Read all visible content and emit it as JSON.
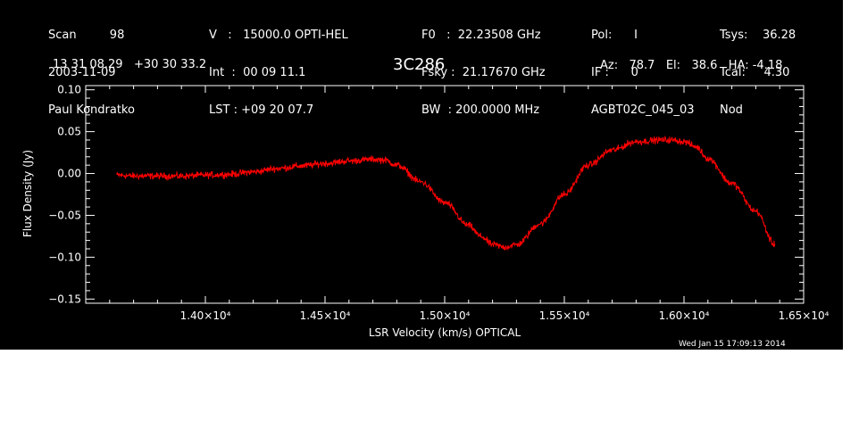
{
  "header": {
    "col1": [
      "Scan         98",
      "2003-11-09",
      "Paul Kondratko"
    ],
    "col2": [
      "V   :   15000.0 OPTI-HEL",
      "Int  :  00 09 11.1",
      "LST : +09 20 07.7"
    ],
    "col3": [
      "F0   :  22.23508 GHz",
      "Fsky :  21.17670 GHz",
      "BW  : 200.0000 MHz"
    ],
    "col4": [
      "Pol:      I",
      "IF :      0",
      "AGBT02C_045_03"
    ],
    "col5": [
      "Tsys:    36.28",
      "Tcal:     4.30",
      "Nod"
    ],
    "coords": "13 31 08.29   +30 30 33.2",
    "source": "3C286",
    "pointing": "Az:   78.7   El:   38.6   HA: -4.18",
    "timestamp": "Wed Jan 15 17:09:13 2014"
  },
  "colors": {
    "background": "#000000",
    "foreground": "#ffffff",
    "trace": "#ff0000"
  },
  "chart_data": {
    "type": "line",
    "title": "3C286",
    "xlabel": "LSR Velocity (km/s) OPTICAL",
    "ylabel": "Flux Density (Jy)",
    "xlim": [
      13500,
      16500
    ],
    "ylim": [
      -0.155,
      0.105
    ],
    "x_ticks": [
      14000,
      14500,
      15000,
      15500,
      16000,
      16500
    ],
    "x_tick_labels": [
      "1.40×10⁴",
      "1.45×10⁴",
      "1.50×10⁴",
      "1.55×10⁴",
      "1.60×10⁴",
      "1.65×10⁴"
    ],
    "y_ticks": [
      0.1,
      0.05,
      0.0,
      -0.05,
      -0.1,
      -0.15
    ],
    "y_tick_labels": [
      "0.10",
      "0.05",
      "0.00",
      "−0.05",
      "−0.10",
      "−0.15"
    ],
    "noise_amplitude": 0.006,
    "series": [
      {
        "x": [
          13630,
          13700,
          13800,
          13900,
          14000,
          14100,
          14200,
          14300,
          14400,
          14500,
          14600,
          14700,
          14750,
          14800,
          14900,
          15000,
          15100,
          15150,
          15200,
          15250,
          15300,
          15400,
          15500,
          15600,
          15700,
          15800,
          15900,
          15950,
          16000,
          16050,
          16100,
          16200,
          16300,
          16380
        ],
        "y": [
          -0.002,
          -0.003,
          -0.003,
          -0.003,
          -0.002,
          -0.001,
          0.002,
          0.006,
          0.009,
          0.012,
          0.015,
          0.017,
          0.016,
          0.01,
          -0.01,
          -0.035,
          -0.062,
          -0.075,
          -0.085,
          -0.088,
          -0.085,
          -0.06,
          -0.025,
          0.01,
          0.028,
          0.038,
          0.04,
          0.04,
          0.038,
          0.032,
          0.018,
          -0.012,
          -0.045,
          -0.085
        ]
      }
    ]
  }
}
